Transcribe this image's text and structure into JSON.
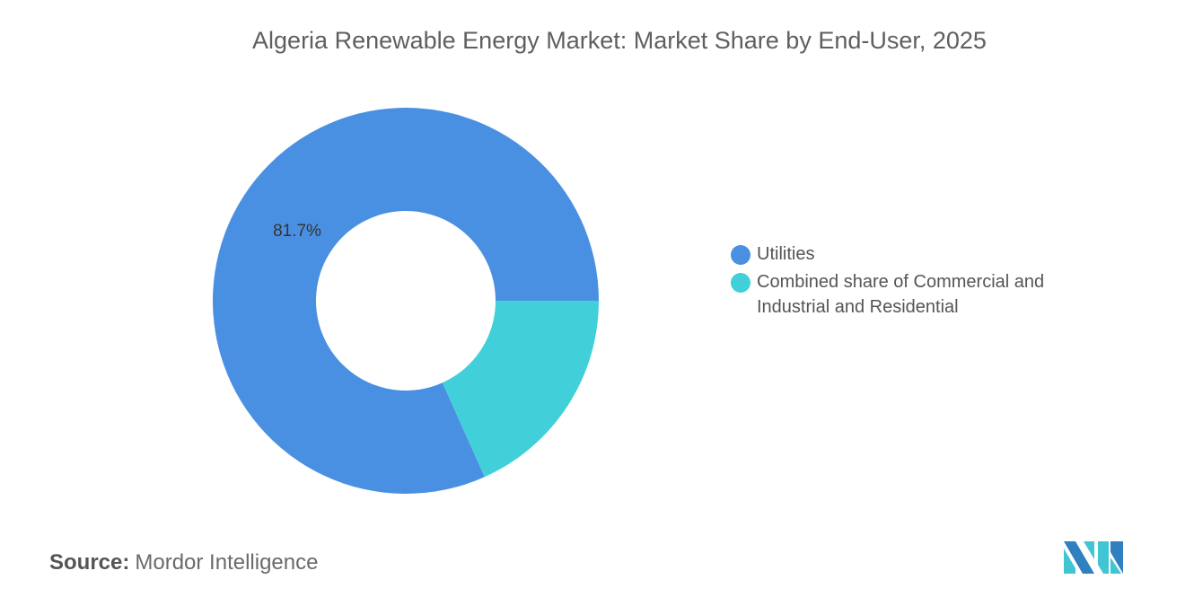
{
  "title": "Algeria Renewable Energy Market: Market Share by End-User, 2025",
  "chart_data": {
    "type": "pie",
    "donut": true,
    "title": "Algeria Renewable Energy Market: Market Share by End-User, 2025",
    "categories": [
      "Utilities",
      "Combined share of Commercial and Industrial and Residential"
    ],
    "values": [
      81.7,
      18.3
    ],
    "colors": [
      "#4a90e2",
      "#41d0d9"
    ],
    "data_labels": [
      "81.7%",
      ""
    ],
    "legend_position": "right"
  },
  "source": {
    "label": "Source:",
    "value": "Mordor Intelligence"
  },
  "logo_text": "Mordor Intelligence"
}
